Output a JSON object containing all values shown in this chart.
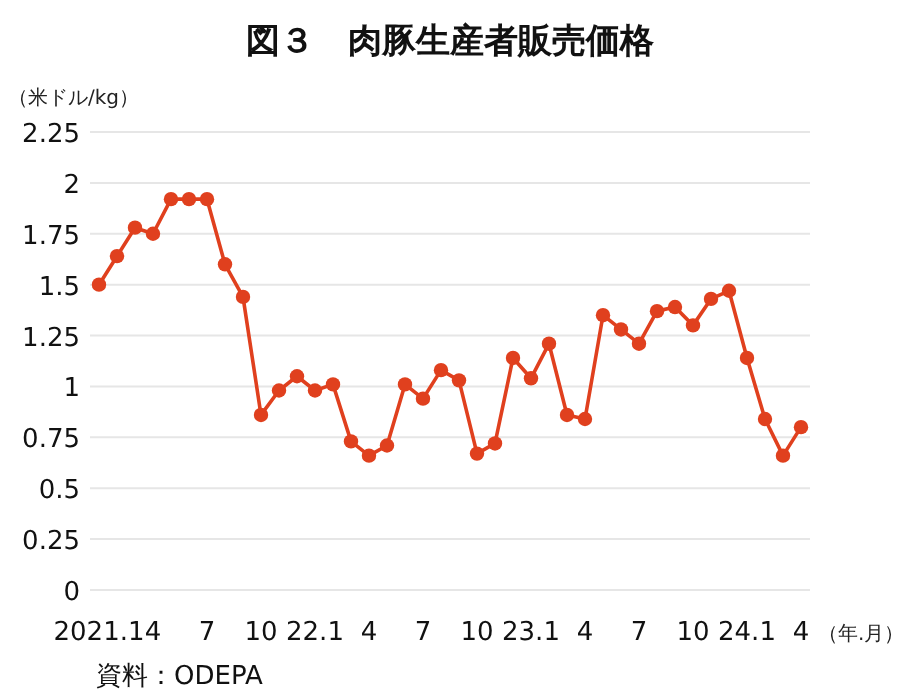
{
  "chart_data": {
    "type": "line",
    "title": "図３　肉豚生産者販売価格",
    "ylabel": "（米ドル/kg）",
    "xlabel": "（年.月）",
    "annotations": [
      "資料：ODEPA"
    ],
    "categories": [
      "2021.1",
      null,
      null,
      "4",
      null,
      null,
      "7",
      null,
      null,
      "10",
      null,
      null,
      "22.1",
      null,
      null,
      "4",
      null,
      null,
      "7",
      null,
      null,
      "10",
      null,
      null,
      "23.1",
      null,
      null,
      "4",
      null,
      null,
      "7",
      null,
      null,
      "10",
      null,
      null,
      "24.1",
      null,
      null,
      "4"
    ],
    "series": [
      {
        "color": "#e0401e",
        "values": [
          1.5,
          1.64,
          1.78,
          1.75,
          1.92,
          1.92,
          1.92,
          1.6,
          1.44,
          0.86,
          0.98,
          1.05,
          0.98,
          1.01,
          0.73,
          0.66,
          0.71,
          1.01,
          0.94,
          1.08,
          1.03,
          0.67,
          0.72,
          1.14,
          1.04,
          1.21,
          0.86,
          0.84,
          1.35,
          1.28,
          1.21,
          1.37,
          1.39,
          1.3,
          1.43,
          1.47,
          1.14,
          0.84,
          0.66,
          0.8
        ]
      }
    ],
    "ylim": [
      0,
      2.25
    ],
    "yticks": [
      0,
      0.25,
      0.5,
      0.75,
      1,
      1.25,
      1.5,
      1.75,
      2,
      2.25
    ],
    "grid": "y",
    "marker": "circle",
    "line_style": "solid"
  }
}
